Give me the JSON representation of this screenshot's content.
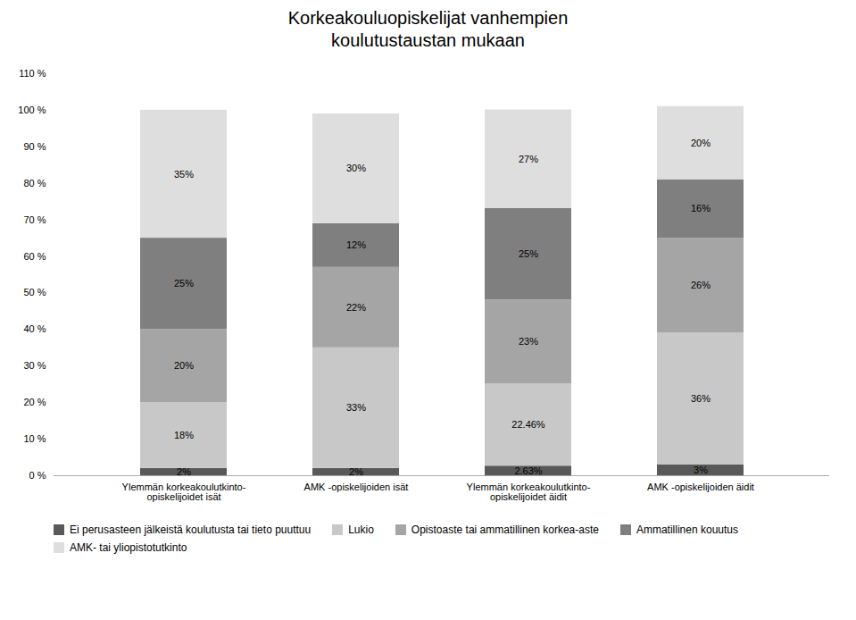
{
  "chart_data": {
    "type": "bar",
    "stacked": true,
    "title": "Korkeakouluopiskelijat vanhempien\nkoulutustaustan mukaan",
    "categories": [
      "Ylemmän korkeakoulutkinto-\nopiskelijoidet isät",
      "AMK -opiskelijoiden isät",
      "Ylemmän korkeakoulutkinto-\nopiskelijoidet äidit",
      "AMK -opiskelijoiden äidit"
    ],
    "series": [
      {
        "name": "Ei perusasteen jälkeistä koulutusta tai tieto puuttuu",
        "color": "#595959",
        "values": [
          2,
          2,
          2.63,
          3
        ],
        "value_labels": [
          "2%",
          "2%",
          "2.63%",
          "3%"
        ]
      },
      {
        "name": "Lukio",
        "color": "#c8c8c8",
        "values": [
          18,
          33,
          22.46,
          36
        ],
        "value_labels": [
          "18%",
          "33%",
          "22.46%",
          "36%"
        ]
      },
      {
        "name": "Opistoaste tai ammatillinen korkea-aste",
        "color": "#a5a5a5",
        "values": [
          20,
          22,
          23,
          26
        ],
        "value_labels": [
          "20%",
          "22%",
          "23%",
          "26%"
        ]
      },
      {
        "name": "Ammatillinen kouutus",
        "color": "#7f7f7f",
        "values": [
          25,
          12,
          25,
          16
        ],
        "value_labels": [
          "25%",
          "12%",
          "25%",
          "16%"
        ]
      },
      {
        "name": "AMK- tai yliopistotutkinto",
        "color": "#dedede",
        "values": [
          35,
          30,
          27,
          20
        ],
        "value_labels": [
          "35%",
          "30%",
          "27%",
          "20%"
        ]
      }
    ],
    "ylim": [
      0,
      110
    ],
    "yticks": [
      {
        "value": 0,
        "label": "0 %"
      },
      {
        "value": 10,
        "label": "10 %"
      },
      {
        "value": 20,
        "label": "20 %"
      },
      {
        "value": 30,
        "label": "30 %"
      },
      {
        "value": 40,
        "label": "40 %"
      },
      {
        "value": 50,
        "label": "50 %"
      },
      {
        "value": 60,
        "label": "60 %"
      },
      {
        "value": 70,
        "label": "70 %"
      },
      {
        "value": 80,
        "label": "80 %"
      },
      {
        "value": 90,
        "label": "90 %"
      },
      {
        "value": 100,
        "label": "100 %"
      },
      {
        "value": 110,
        "label": "110 %"
      }
    ],
    "grid": false,
    "data_labels": true,
    "legend": "bottom"
  }
}
